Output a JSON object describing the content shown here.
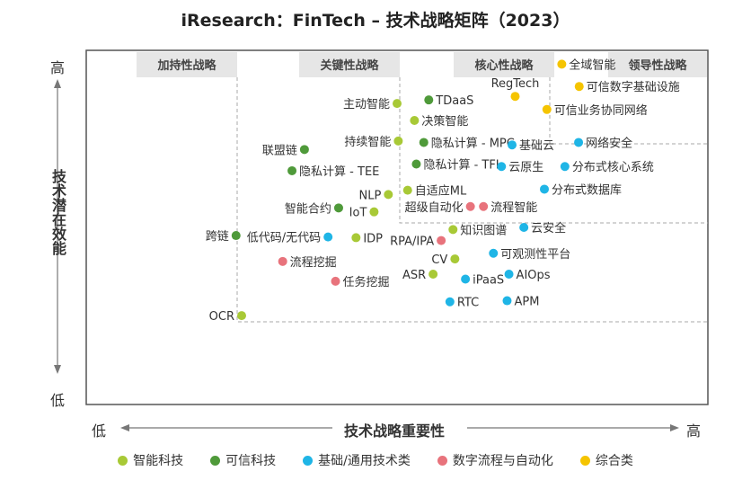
{
  "title": "iResearch：FinTech – 技术战略矩阵（2023）",
  "axes": {
    "x_label": "技术战略重要性",
    "x_low": "低",
    "x_high": "高",
    "y_label": "技术潜在效能",
    "y_low": "低",
    "y_high": "高"
  },
  "colors": {
    "智能科技": "#a8c936",
    "可信科技": "#4f9a3a",
    "基础/通用技术类": "#1fb5e6",
    "数字流程与自动化": "#e8737c",
    "综合类": "#f5c400"
  },
  "chart_data": {
    "type": "scatter",
    "title": "iResearch：FinTech – 技术战略矩阵（2023）",
    "xlabel": "技术战略重要性",
    "ylabel": "技术潜在效能",
    "xlim": [
      0,
      100
    ],
    "ylim": [
      0,
      100
    ],
    "regions": [
      "加持性战略",
      "关键性战略",
      "核心性战略",
      "领导性战略"
    ],
    "series": [
      {
        "name": "智能科技",
        "points": [
          {
            "label": "主动智能",
            "x": 50.0,
            "y": 85.0
          },
          {
            "label": "决策智能",
            "x": 52.8,
            "y": 80.2
          },
          {
            "label": "持续智能",
            "x": 50.2,
            "y": 74.4
          },
          {
            "label": "NLP",
            "x": 48.6,
            "y": 59.3
          },
          {
            "label": "自适应ML",
            "x": 51.7,
            "y": 60.5
          },
          {
            "label": "IoT",
            "x": 46.3,
            "y": 54.4
          },
          {
            "label": "IDP",
            "x": 43.4,
            "y": 47.1
          },
          {
            "label": "知识图谱",
            "x": 59.0,
            "y": 49.4
          },
          {
            "label": "CV",
            "x": 59.3,
            "y": 41.1
          },
          {
            "label": "ASR",
            "x": 55.8,
            "y": 36.8
          },
          {
            "label": "OCR",
            "x": 25.0,
            "y": 25.1
          }
        ]
      },
      {
        "name": "可信科技",
        "points": [
          {
            "label": "TDaaS",
            "x": 55.1,
            "y": 86.0
          },
          {
            "label": "隐私计算 - MPC",
            "x": 54.3,
            "y": 74.0
          },
          {
            "label": "联盟链",
            "x": 35.1,
            "y": 72.0
          },
          {
            "label": "隐私计算 - TFL",
            "x": 53.1,
            "y": 67.9
          },
          {
            "label": "隐私计算 - TEE",
            "x": 33.1,
            "y": 66.0
          },
          {
            "label": "智能合约",
            "x": 40.6,
            "y": 55.5
          },
          {
            "label": "跨链",
            "x": 24.1,
            "y": 47.7
          }
        ]
      },
      {
        "name": "基础/通用技术类",
        "points": [
          {
            "label": "基础云",
            "x": 68.5,
            "y": 73.3
          },
          {
            "label": "网络安全",
            "x": 79.2,
            "y": 74.0
          },
          {
            "label": "云原生",
            "x": 66.8,
            "y": 67.2
          },
          {
            "label": "分布式核心系统",
            "x": 77.0,
            "y": 67.2
          },
          {
            "label": "分布式数据库",
            "x": 73.7,
            "y": 60.8
          },
          {
            "label": "云安全",
            "x": 70.4,
            "y": 50.0
          },
          {
            "label": "低代码/无代码",
            "x": 38.9,
            "y": 47.3
          },
          {
            "label": "可观测性平台",
            "x": 65.5,
            "y": 42.7
          },
          {
            "label": "AIOps",
            "x": 68.0,
            "y": 36.8
          },
          {
            "label": "iPaaS",
            "x": 61.0,
            "y": 35.4
          },
          {
            "label": "APM",
            "x": 67.7,
            "y": 29.3
          },
          {
            "label": "RTC",
            "x": 58.5,
            "y": 29.0
          }
        ]
      },
      {
        "name": "数字流程与自动化",
        "points": [
          {
            "label": "超级自动化",
            "x": 61.8,
            "y": 55.9
          },
          {
            "label": "流程智能",
            "x": 63.9,
            "y": 55.9
          },
          {
            "label": "RPA/IPA",
            "x": 57.1,
            "y": 46.3
          },
          {
            "label": "流程挖掘",
            "x": 31.6,
            "y": 40.4
          },
          {
            "label": "任务挖掘",
            "x": 40.1,
            "y": 34.8
          }
        ]
      },
      {
        "name": "综合类",
        "points": [
          {
            "label": "全域智能",
            "x": 76.5,
            "y": 96.1
          },
          {
            "label": "RegTech",
            "x": 69.0,
            "y": 87.0
          },
          {
            "label": "可信数字基础设施",
            "x": 79.3,
            "y": 89.8
          },
          {
            "label": "可信业务协同网络",
            "x": 74.1,
            "y": 83.3
          }
        ]
      }
    ],
    "legend": {
      "placement": "bottom",
      "entries": [
        "智能科技",
        "可信科技",
        "基础/通用技术类",
        "数字流程与自动化",
        "综合类"
      ]
    },
    "grid": false
  }
}
